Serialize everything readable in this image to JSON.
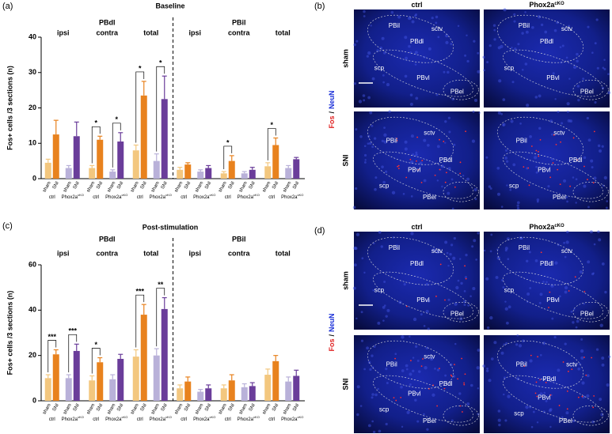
{
  "panels": {
    "a": "(a)",
    "b": "(b)",
    "c": "(c)",
    "d": "(d)"
  },
  "chart_data": [
    {
      "type": "bar",
      "title": "Baseline",
      "ylabel": "Fos+ cells /3 sections (n)",
      "ylim": [
        0,
        40
      ],
      "yticks": [
        0,
        10,
        20,
        30,
        40
      ],
      "regions": [
        "PBdl",
        "PBil"
      ],
      "groups": [
        "ipsi",
        "contra",
        "total",
        "ipsi",
        "contra",
        "total"
      ],
      "bar_labels": [
        "sham",
        "SNI"
      ],
      "genotypes": [
        "ctrl",
        "Phox2a"
      ],
      "genotype_superscript": "cKO",
      "series": [
        {
          "color": "#f3c77f",
          "values": [
            4.5,
            3,
            8,
            2.5,
            1.5,
            3.5
          ],
          "errors": [
            1,
            0.7,
            1.5,
            0.7,
            0.5,
            1
          ]
        },
        {
          "color": "#e8821e",
          "values": [
            12.5,
            11,
            23.5,
            4,
            5,
            9.5
          ],
          "errors": [
            4,
            1,
            4,
            0.5,
            1.5,
            2
          ]
        },
        {
          "color": "#b9b1d9",
          "values": [
            3,
            2,
            5,
            2,
            1.5,
            3
          ],
          "errors": [
            0.7,
            0.5,
            2,
            0.5,
            0.5,
            0.7
          ]
        },
        {
          "color": "#6a3d9a",
          "values": [
            12,
            10.5,
            22.5,
            3,
            2.5,
            5.5
          ],
          "errors": [
            4,
            2.5,
            6.5,
            0.7,
            0.7,
            0.5
          ]
        }
      ],
      "comparisons": [
        {
          "group": 1,
          "genotype": 0,
          "label": "*"
        },
        {
          "group": 1,
          "genotype": 1,
          "label": "*"
        },
        {
          "group": 2,
          "genotype": 0,
          "label": "*"
        },
        {
          "group": 2,
          "genotype": 1,
          "label": "*"
        },
        {
          "group": 4,
          "genotype": 0,
          "label": "*"
        },
        {
          "group": 5,
          "genotype": 0,
          "label": "*"
        }
      ]
    },
    {
      "type": "bar",
      "title": "Post-stimulation",
      "ylabel": "Fos+ cells /3 sections (n)",
      "ylim": [
        0,
        60
      ],
      "yticks": [
        0,
        20,
        40,
        60
      ],
      "regions": [
        "PBdl",
        "PBil"
      ],
      "groups": [
        "ipsi",
        "contra",
        "total",
        "ipsi",
        "contra",
        "total"
      ],
      "bar_labels": [
        "sham",
        "SNI"
      ],
      "genotypes": [
        "ctrl",
        "Phox2a"
      ],
      "genotype_superscript": "cKO",
      "series": [
        {
          "color": "#f3c77f",
          "values": [
            10,
            9,
            19.5,
            5.5,
            5.5,
            11.5
          ],
          "errors": [
            1.5,
            2,
            3,
            1.5,
            1.5,
            2.5
          ]
        },
        {
          "color": "#e8821e",
          "values": [
            20.5,
            17,
            38,
            8.5,
            9,
            17.5
          ],
          "errors": [
            2,
            2,
            4.5,
            2,
            2.5,
            2.5
          ]
        },
        {
          "color": "#b9b1d9",
          "values": [
            10,
            9.5,
            20,
            4,
            6,
            8.5
          ],
          "errors": [
            1.5,
            2,
            3,
            1,
            1.5,
            2
          ]
        },
        {
          "color": "#6a3d9a",
          "values": [
            22,
            18.5,
            40.5,
            5.5,
            6.5,
            11
          ],
          "errors": [
            3,
            2,
            5,
            1.5,
            1.5,
            2.5
          ]
        }
      ],
      "comparisons": [
        {
          "group": 0,
          "genotype": 0,
          "label": "***"
        },
        {
          "group": 0,
          "genotype": 1,
          "label": "***"
        },
        {
          "group": 1,
          "genotype": 0,
          "label": "*"
        },
        {
          "group": 2,
          "genotype": 0,
          "label": "***"
        },
        {
          "group": 2,
          "genotype": 1,
          "label": "**"
        }
      ]
    }
  ],
  "images": {
    "columns": [
      "ctrl",
      "Phox2a"
    ],
    "superscript": "cKO",
    "rows": [
      "sham",
      "SNI"
    ],
    "stain": [
      "Fos",
      "/",
      "NeuN"
    ],
    "panels": [
      {
        "tiles": [
          [
            "PBil",
            "PBdl",
            "sctv",
            "scp",
            "PBvl",
            "PBel"
          ],
          [
            "PBil",
            "PBdl",
            "sctv",
            "scp",
            "PBvl",
            "PBel"
          ],
          [
            "PBil",
            "sctv",
            "PBdl",
            "PBvl",
            "scp",
            "PBel"
          ],
          [
            "PBil",
            "sctv",
            "PBdl",
            "PBvl",
            "scp",
            "PBel"
          ]
        ]
      },
      {
        "tiles": [
          [
            "PBil",
            "PBdl",
            "sctv",
            "scp",
            "PBvl",
            "PBel"
          ],
          [
            "PBil",
            "PBdl",
            "sctv",
            "scp",
            "PBvl",
            "PBel"
          ],
          [
            "PBil",
            "sctv",
            "PBdl",
            "PBvl",
            "scp",
            "PBel"
          ],
          [
            "PBil",
            "PBdl",
            "sctv",
            "PBvl",
            "scp",
            "PBel"
          ]
        ]
      }
    ]
  }
}
